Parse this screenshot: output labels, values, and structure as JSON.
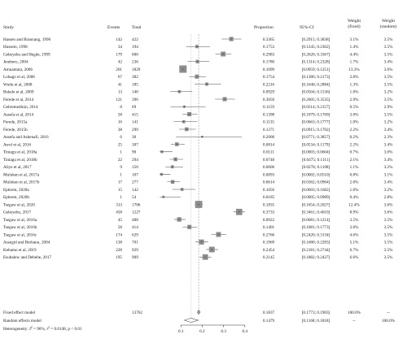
{
  "chart_data": {
    "type": "forest",
    "columns": {
      "study": "Study",
      "events": "Events",
      "total": "Total",
      "proportion": "Proportion",
      "ci": "95%-CI",
      "weight_fixed": "Weight\n(fixed)",
      "weight_random": "Weight\n(random)"
    },
    "studies": [
      {
        "study": "Hassen and Brannang, 1996",
        "events": "142",
        "total": "422",
        "proportion": 0.3365,
        "prop_text": "0.3365",
        "ci_low": 0.2915,
        "ci_high": 0.3838,
        "ci_text": "[0.2915; 0.3838]",
        "w_fixed": 3.1,
        "w_fixed_text": "3.1%",
        "w_random_text": "3.5%"
      },
      {
        "study": "Hussein, 1998",
        "events": "34",
        "total": "194",
        "proportion": 0.1753,
        "prop_text": "0.1753",
        "ci_low": 0.1245,
        "ci_high": 0.2362,
        "ci_text": "[0.1245; 0.2362]",
        "w_fixed": 1.4,
        "w_fixed_text": "1.4%",
        "w_random_text": "3.5%"
      },
      {
        "study": "Gebeyehu and Hegde, 1999",
        "events": "179",
        "total": "600",
        "proportion": 0.2983,
        "prop_text": "0.2983",
        "ci_low": 0.262,
        "ci_high": 0.3367,
        "ci_text": "[0.2620; 0.3367]",
        "w_fixed": 4.4,
        "w_fixed_text": "4.4%",
        "w_random_text": "3.5%"
      },
      {
        "study": "Jemberu, 2004",
        "events": "42",
        "total": "236",
        "proportion": 0.178,
        "prop_text": "0.1780",
        "ci_low": 0.1314,
        "ci_high": 0.2328,
        "ci_text": "[0.1314; 0.2328]",
        "w_fixed": 1.7,
        "w_fixed_text": "1.7%",
        "w_random_text": "3.4%"
      },
      {
        "study": "Amuamuta, 2006",
        "events": "201",
        "total": "1829",
        "proportion": 0.1099,
        "prop_text": "0.1099",
        "ci_low": 0.0959,
        "ci_high": 0.1251,
        "ci_text": "[0.0959; 0.1251]",
        "w_fixed": 13.3,
        "w_fixed_text": "13.3%",
        "w_random_text": "3.6%"
      },
      {
        "study": "Lobago et al, 2006",
        "events": "67",
        "total": "382",
        "proportion": 0.1754,
        "prop_text": "0.1754",
        "ci_low": 0.1386,
        "ci_high": 0.2173,
        "ci_text": "[0.1386; 0.2173]",
        "w_fixed": 2.8,
        "w_fixed_text": "2.8%",
        "w_random_text": "3.5%"
      },
      {
        "study": "Wudu et al, 2008",
        "events": "41",
        "total": "185",
        "proportion": 0.2216,
        "prop_text": "0.2216",
        "ci_low": 0.164,
        "ci_high": 0.2884,
        "ci_text": "[0.1640; 0.2884]",
        "w_fixed": 1.3,
        "w_fixed_text": "1.3%",
        "w_random_text": "3.5%"
      },
      {
        "study": "Bekele et al, 2009",
        "events": "13",
        "total": "140",
        "proportion": 0.0929,
        "prop_text": "0.0929",
        "ci_low": 0.0504,
        "ci_high": 0.1536,
        "ci_text": "[0.0504; 0.1536]",
        "w_fixed": 1.0,
        "w_fixed_text": "1.0%",
        "w_random_text": "3.2%"
      },
      {
        "study": "Ferede et al, 2014",
        "events": "121",
        "total": "396",
        "proportion": 0.3056,
        "prop_text": "0.3056",
        "ci_low": 0.2605,
        "ci_high": 0.3535,
        "ci_text": "[0.2605; 0.3535]",
        "w_fixed": 2.9,
        "w_fixed_text": "2.9%",
        "w_random_text": "3.5%"
      },
      {
        "study": "Gebremedinin, 2014",
        "events": "8",
        "total": "69",
        "proportion": 0.1159,
        "prop_text": "0.1159",
        "ci_low": 0.0514,
        "ci_high": 0.2157,
        "ci_text": "[0.0514; 0.2157]",
        "w_fixed": 0.5,
        "w_fixed_text": "0.5%",
        "w_random_text": "2.9%"
      },
      {
        "study": "Assefa et al, 2014",
        "events": "58",
        "total": "415",
        "proportion": 0.1398,
        "prop_text": "0.1398",
        "ci_low": 0.1079,
        "ci_high": 0.1769,
        "ci_text": "[0.1079; 0.1769]",
        "w_fixed": 3.0,
        "w_fixed_text": "3.0%",
        "w_random_text": "3.5%"
      },
      {
        "study": "Ferede, 2015a",
        "events": "16",
        "total": "141",
        "proportion": 0.1135,
        "prop_text": "0.1135",
        "ci_low": 0.0663,
        "ci_high": 0.1777,
        "ci_text": "[0.0663; 0.1777]",
        "w_fixed": 1.0,
        "w_fixed_text": "1.0%",
        "w_random_text": "3.2%"
      },
      {
        "study": "Ferede, 2015b",
        "events": "38",
        "total": "299",
        "proportion": 0.1271,
        "prop_text": "0.1271",
        "ci_low": 0.0915,
        "ci_high": 0.1702,
        "ci_text": "[0.0915; 0.1702]",
        "w_fixed": 2.2,
        "w_fixed_text": "2.2%",
        "w_random_text": "3.4%"
      },
      {
        "study": "Assefa and Ashenafi, 2016",
        "events": "6",
        "total": "30",
        "proportion": 0.2,
        "prop_text": "0.2000",
        "ci_low": 0.0771,
        "ci_high": 0.3857,
        "ci_text": "[0.0771; 0.3857]",
        "w_fixed": 0.2,
        "w_fixed_text": "0.2%",
        "w_random_text": "2.3%"
      },
      {
        "study": "Awol et al, 2016",
        "events": "25",
        "total": "307",
        "proportion": 0.0814,
        "prop_text": "0.0814",
        "ci_low": 0.0534,
        "ci_high": 0.1179,
        "ci_text": "[0.0534; 0.1179]",
        "w_fixed": 2.2,
        "w_fixed_text": "2.2%",
        "w_random_text": "3.4%"
      },
      {
        "study": "Tintagu et al, 2018a",
        "events": "1",
        "total": "90",
        "proportion": 0.0111,
        "prop_text": "0.0111",
        "ci_low": 0.0003,
        "ci_high": 0.0604,
        "ci_text": "[0.0003; 0.0604]",
        "w_fixed": 0.7,
        "w_fixed_text": "0.7%",
        "w_random_text": "3.0%"
      },
      {
        "study": "Tintagu et al, 2018b",
        "events": "22",
        "total": "294",
        "proportion": 0.0748,
        "prop_text": "0.0748",
        "ci_low": 0.0475,
        "ci_high": 0.1111,
        "ci_text": "[0.0475; 0.1111]",
        "w_fixed": 2.1,
        "w_fixed_text": "2.1%",
        "w_random_text": "3.4%"
      },
      {
        "study": "Aliye et al, 2017",
        "events": "9",
        "total": "150",
        "proportion": 0.06,
        "prop_text": "0.0600",
        "ci_low": 0.0278,
        "ci_high": 0.1108,
        "ci_text": "[0.0278; 0.1108]",
        "w_fixed": 1.1,
        "w_fixed_text": "1.1%",
        "w_random_text": "3.2%"
      },
      {
        "study": "Muluken et al, 2017a",
        "events": "1",
        "total": "107",
        "proportion": 0.0093,
        "prop_text": "0.0093",
        "ci_low": 0.0002,
        "ci_high": 0.051,
        "ci_text": "[0.0002; 0.0510]",
        "w_fixed": 0.8,
        "w_fixed_text": "0.8%",
        "w_random_text": "3.1%"
      },
      {
        "study": "Muluken et al, 2017b",
        "events": "17",
        "total": "277",
        "proportion": 0.0614,
        "prop_text": "0.0614",
        "ci_low": 0.0362,
        "ci_high": 0.0964,
        "ci_text": "[0.0362; 0.0964]",
        "w_fixed": 2.0,
        "w_fixed_text": "2.0%",
        "w_random_text": "3.4%"
      },
      {
        "study": "Ephrem, 2020a",
        "events": "15",
        "total": "142",
        "proportion": 0.1056,
        "prop_text": "0.1056",
        "ci_low": 0.0603,
        "ci_high": 0.1682,
        "ci_text": "[0.0603; 0.1682]",
        "w_fixed": 1.0,
        "w_fixed_text": "1.0%",
        "w_random_text": "3.2%"
      },
      {
        "study": "Ephrem, 2020b",
        "events": "1",
        "total": "54",
        "proportion": 0.0185,
        "prop_text": "0.0185",
        "ci_low": 0.0005,
        "ci_high": 0.0989,
        "ci_text": "[0.0005; 0.0989]",
        "w_fixed": 0.4,
        "w_fixed_text": "0.4%",
        "w_random_text": "2.8%"
      },
      {
        "study": "Tsegaw et al, 2020",
        "events": "313",
        "total": "1706",
        "proportion": 0.1835,
        "prop_text": "0.1835",
        "ci_low": 0.1654,
        "ci_high": 0.2027,
        "ci_text": "[0.1654; 0.2027]",
        "w_fixed": 12.4,
        "w_fixed_text": "12.4%",
        "w_random_text": "3.6%"
      },
      {
        "study": "Gebeyehu, 2017",
        "events": "458",
        "total": "1227",
        "proportion": 0.3733,
        "prop_text": "0.3733",
        "ci_low": 0.3461,
        "ci_high": 0.401,
        "ci_text": "[0.3461; 0.4010]",
        "w_fixed": 8.9,
        "w_fixed_text": "8.9%",
        "w_random_text": "3.6%"
      },
      {
        "study": "Tsegaw et al, 2016a",
        "events": "45",
        "total": "488",
        "proportion": 0.0922,
        "prop_text": "0.0922",
        "ci_low": 0.0681,
        "ci_high": 0.1214,
        "ci_text": "[0.0681; 0.1214]",
        "w_fixed": 3.5,
        "w_fixed_text": "3.5%",
        "w_random_text": "3.5%"
      },
      {
        "study": "Tsegaw et al, 2016b",
        "events": "58",
        "total": "414",
        "proportion": 0.1401,
        "prop_text": "0.1401",
        "ci_low": 0.1081,
        "ci_high": 0.1773,
        "ci_text": "[0.1081; 0.1773]",
        "w_fixed": 3.0,
        "w_fixed_text": "3.0%",
        "w_random_text": "3.5%"
      },
      {
        "study": "Tsegaw et al, 2016c",
        "events": "174",
        "total": "629",
        "proportion": 0.2766,
        "prop_text": "0.2766",
        "ci_low": 0.242,
        "ci_high": 0.3134,
        "ci_text": "[0.2420; 0.3134]",
        "w_fixed": 4.6,
        "w_fixed_text": "4.6%",
        "w_random_text": "3.5%"
      },
      {
        "study": "Assegid and Berhanu, 2004",
        "events": "138",
        "total": "701",
        "proportion": 0.1969,
        "prop_text": "0.1969",
        "ci_low": 0.168,
        "ci_high": 0.2283,
        "ci_text": "[0.1680; 0.2283]",
        "w_fixed": 5.1,
        "w_fixed_text": "5.1%",
        "w_random_text": "3.5%"
      },
      {
        "study": "Kebamo et al, 2019",
        "events": "228",
        "total": "929",
        "proportion": 0.2454,
        "prop_text": "0.2454",
        "ci_low": 0.2181,
        "ci_high": 0.2744,
        "ci_text": "[0.2181; 0.2744]",
        "w_fixed": 6.7,
        "w_fixed_text": "6.7%",
        "w_random_text": "3.5%"
      },
      {
        "study": "Esubalew and Debebe, 2017",
        "events": "195",
        "total": "909",
        "proportion": 0.2145,
        "prop_text": "0.2145",
        "ci_low": 0.1882,
        "ci_high": 0.2427,
        "ci_text": "[0.1882; 0.2427]",
        "w_fixed": 6.6,
        "w_fixed_text": "6.6%",
        "w_random_text": "3.5%"
      }
    ],
    "fixed": {
      "label": "Fixed effect model",
      "total": "13762",
      "proportion": 0.1837,
      "prop_text": "0.1837",
      "ci_low": 0.1773,
      "ci_high": 0.1903,
      "ci_text": "[0.1773; 0.1903]",
      "w_fixed_text": "100.0%",
      "w_random_text": "--"
    },
    "random": {
      "label": "Random effects model",
      "proportion": 0.1479,
      "prop_text": "0.1479",
      "ci_low": 0.1168,
      "ci_high": 0.1818,
      "ci_text": "[0.1168; 0.1818]",
      "w_fixed_text": "--",
      "w_random_text": "100.0%"
    },
    "heterogeneity": {
      "prefix": "Heterogeneity: ",
      "i2_symbol": "I",
      "i2_sup": "2",
      "i2_value": " = 96%, ",
      "tau_symbol": "τ",
      "tau_sup": "2",
      "tau_value": " = 0.0148, ",
      "p_value": "p < 0.01"
    },
    "x_axis": {
      "ticks": [
        0.1,
        0.2,
        0.3,
        0.4
      ],
      "tick_labels": [
        "0.1",
        "0.2",
        "0.3",
        "0.4"
      ],
      "xlim": [
        0,
        0.42
      ]
    },
    "colors": {
      "box": "#8c8c8c",
      "line": "#4d4d4d",
      "reference_dashed": "#999999"
    }
  }
}
